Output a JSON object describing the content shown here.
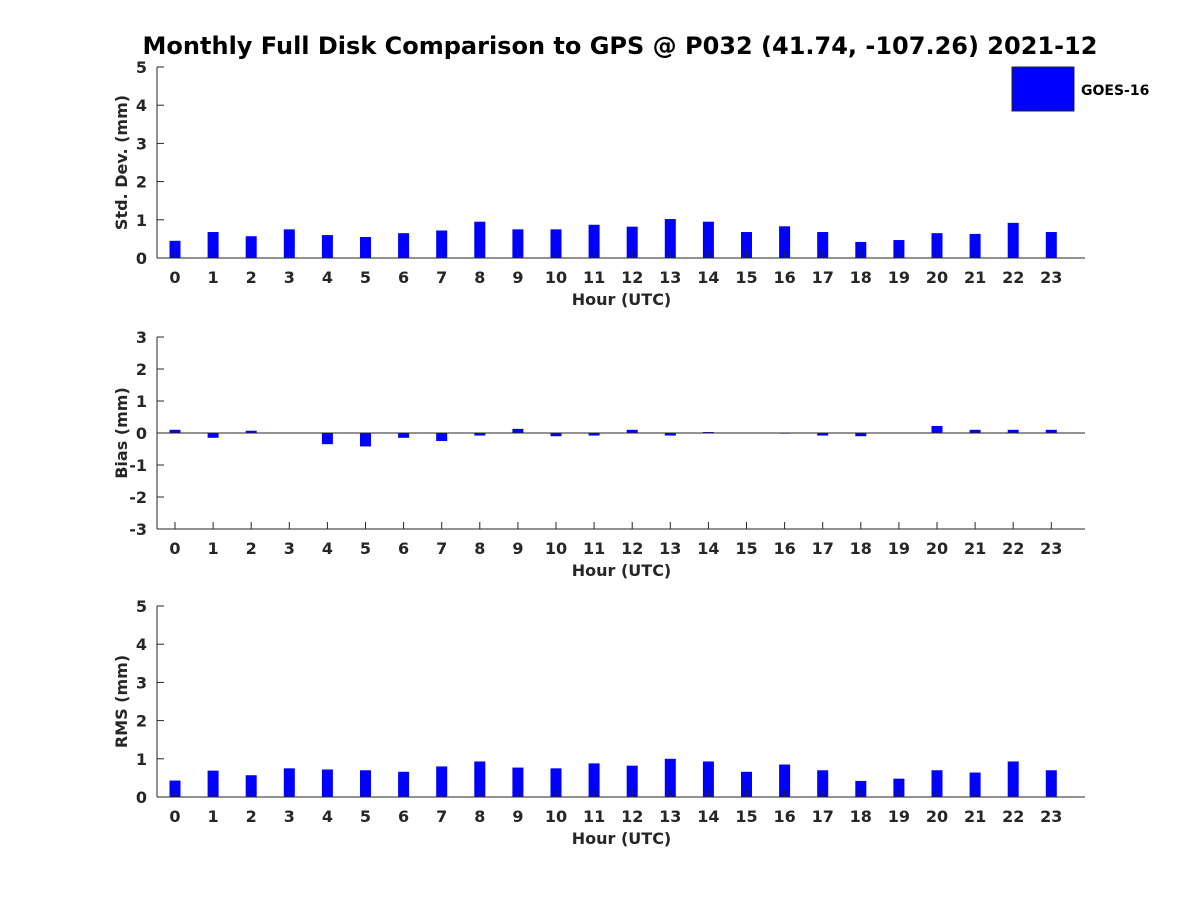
{
  "figure_title": "Monthly Full Disk Comparison to GPS @ P032 (41.74, -107.26) 2021-12",
  "legend": {
    "label": "GOES-16",
    "color": "#0000ff"
  },
  "chart_data": [
    {
      "type": "bar",
      "title": "",
      "xlabel": "Hour (UTC)",
      "ylabel": "Std. Dev. (mm)",
      "categories": [
        "0",
        "1",
        "2",
        "3",
        "4",
        "5",
        "6",
        "7",
        "8",
        "9",
        "10",
        "11",
        "12",
        "13",
        "14",
        "15",
        "16",
        "17",
        "18",
        "19",
        "20",
        "21",
        "22",
        "23"
      ],
      "series": [
        {
          "name": "GOES-16",
          "color": "#0000ff",
          "values": [
            0.45,
            0.68,
            0.57,
            0.75,
            0.6,
            0.55,
            0.65,
            0.72,
            0.95,
            0.75,
            0.75,
            0.87,
            0.82,
            1.02,
            0.95,
            0.68,
            0.83,
            0.68,
            0.42,
            0.47,
            0.65,
            0.63,
            0.92,
            0.68
          ]
        }
      ],
      "ylim": [
        0,
        5
      ],
      "yticks": [
        "0",
        "1",
        "2",
        "3",
        "4",
        "5"
      ],
      "grid": false,
      "legend_position": "top-right"
    },
    {
      "type": "bar",
      "title": "",
      "xlabel": "Hour (UTC)",
      "ylabel": "Bias (mm)",
      "categories": [
        "0",
        "1",
        "2",
        "3",
        "4",
        "5",
        "6",
        "7",
        "8",
        "9",
        "10",
        "11",
        "12",
        "13",
        "14",
        "15",
        "16",
        "17",
        "18",
        "19",
        "20",
        "21",
        "22",
        "23"
      ],
      "series": [
        {
          "name": "GOES-16",
          "color": "#0000ff",
          "values": [
            0.1,
            -0.15,
            0.07,
            0.0,
            -0.35,
            -0.42,
            -0.15,
            -0.25,
            -0.08,
            0.13,
            -0.1,
            -0.08,
            0.1,
            -0.08,
            0.03,
            0.0,
            -0.02,
            -0.08,
            -0.1,
            0.0,
            0.22,
            0.1,
            0.1,
            0.1
          ]
        }
      ],
      "ylim": [
        -3,
        3
      ],
      "yticks": [
        "-3",
        "-2",
        "-1",
        "0",
        "1",
        "2",
        "3"
      ],
      "zero_line": true,
      "grid": false
    },
    {
      "type": "bar",
      "title": "",
      "xlabel": "Hour (UTC)",
      "ylabel": "RMS (mm)",
      "categories": [
        "0",
        "1",
        "2",
        "3",
        "4",
        "5",
        "6",
        "7",
        "8",
        "9",
        "10",
        "11",
        "12",
        "13",
        "14",
        "15",
        "16",
        "17",
        "18",
        "19",
        "20",
        "21",
        "22",
        "23"
      ],
      "series": [
        {
          "name": "GOES-16",
          "color": "#0000ff",
          "values": [
            0.43,
            0.69,
            0.57,
            0.75,
            0.72,
            0.7,
            0.66,
            0.8,
            0.93,
            0.77,
            0.75,
            0.88,
            0.82,
            1.0,
            0.93,
            0.66,
            0.85,
            0.7,
            0.42,
            0.48,
            0.7,
            0.64,
            0.93,
            0.7
          ]
        }
      ],
      "ylim": [
        0,
        5
      ],
      "yticks": [
        "0",
        "1",
        "2",
        "3",
        "4",
        "5"
      ],
      "grid": false
    }
  ]
}
